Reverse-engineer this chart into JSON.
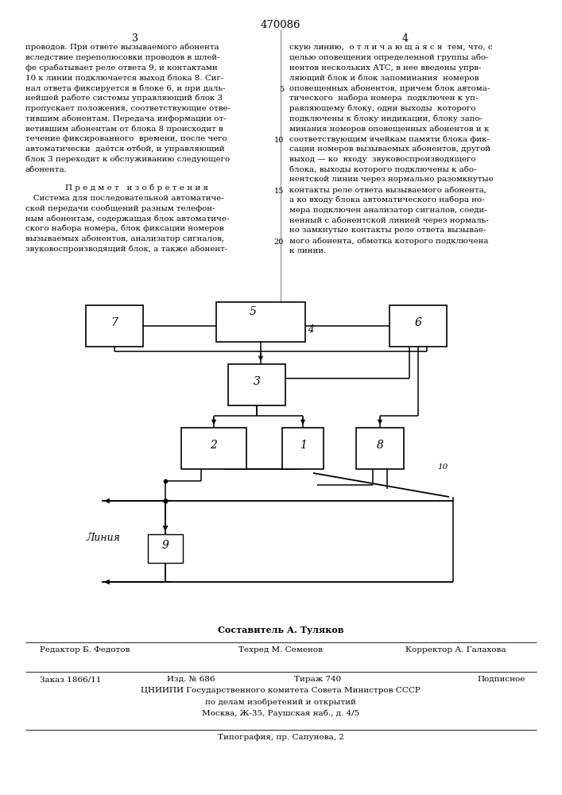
{
  "page_title": "470086",
  "col_left_header": "3",
  "col_right_header": "4",
  "left_text": [
    "проводов. При ответе вызываемого абонента",
    "вследствие переполюсовки проводов в шлей-",
    "фе срабатывает реле ответа 9, и контактами",
    "10 к линии подключается выход блока 8. Сиг-",
    "нал ответа фиксируется в блоке 6, и при даль-",
    "нейшей работе системы управляющий блок 3",
    "пропускает положения, соответствующие отве-",
    "тившим абонентам. Передача информации от-",
    "ветившим абонентам от блока 8 происходит в",
    "течение фиксированного  времени, после чего",
    "автоматически  даётся отбой, и управляющий",
    "блок 3 переходит к обслуживанию следующего",
    "абонента."
  ],
  "predmet_header": "П р е д м е т   и з о б р е т е н и я",
  "predmet_text": [
    "   Система для последовательной автоматиче-",
    "ской передачи сообщений разным телефон-",
    "ным абонентам, содержащая блок автоматиче-",
    "ского набора номера, блок фиксации номеров",
    "вызываемых абонентов, анализатор сигналов,",
    "звуковоспроизводящий блок, а также абонент-"
  ],
  "right_text": [
    "скую линию,  о т л и ч а ю щ а я с я  тем, что, с",
    "целью оповещения определенной группы або-",
    "нентов нескольких АТС, в нее введены упрв-",
    "ляющий блок и блок запоминания  номеров",
    "оповещенных абонентов, причем блок автома-",
    "тического  набора номера  подключен к уп-",
    "равляющему блоку, одни выходы  которого",
    "подключены к блоку индикации, блоку запо-",
    "минания номеров оповещенных абонентов и к",
    "соответствующим ячейкам памяти блока фик-",
    "сации номеров вызываемых абонентов, другой",
    "выход — ко  входу  звуковоспроизводящего",
    "блока, выходы которого подключены к або-",
    "нентской линии через нормально разомкнутые",
    "контакты реле ответа вызываемого абонента,",
    "а ко входу блока автоматического набора но-",
    "мера подключен анализатор сигналов, соеди-",
    "ненный с абонентской линией через нормаль-",
    "но замкнутые контакты реле ответа вызывае-",
    "мого абонента, обмотка которого подключена",
    "к линии."
  ],
  "footer_composer": "Составитель А. Туляков",
  "footer_editor": "Редактор Б. Федотов",
  "footer_tech": "Техред М. Семенов",
  "footer_corrector": "Корректор А. Галахова",
  "footer_order": "Заказ 1866/11",
  "footer_pub": "Изд. № 686",
  "footer_circ": "Тираж 740",
  "footer_sign": "Подписное",
  "footer_org": "ЦНИИПИ Государственного комитета Совета Министров СССР",
  "footer_org2": "по делам изобретений и открытий",
  "footer_addr": "Москва, Ж-35, Раушская наб., д. 4/5",
  "footer_print": "Типография, пр. Сапунова, 2",
  "bg_color": "#ffffff",
  "text_color": "#000000"
}
